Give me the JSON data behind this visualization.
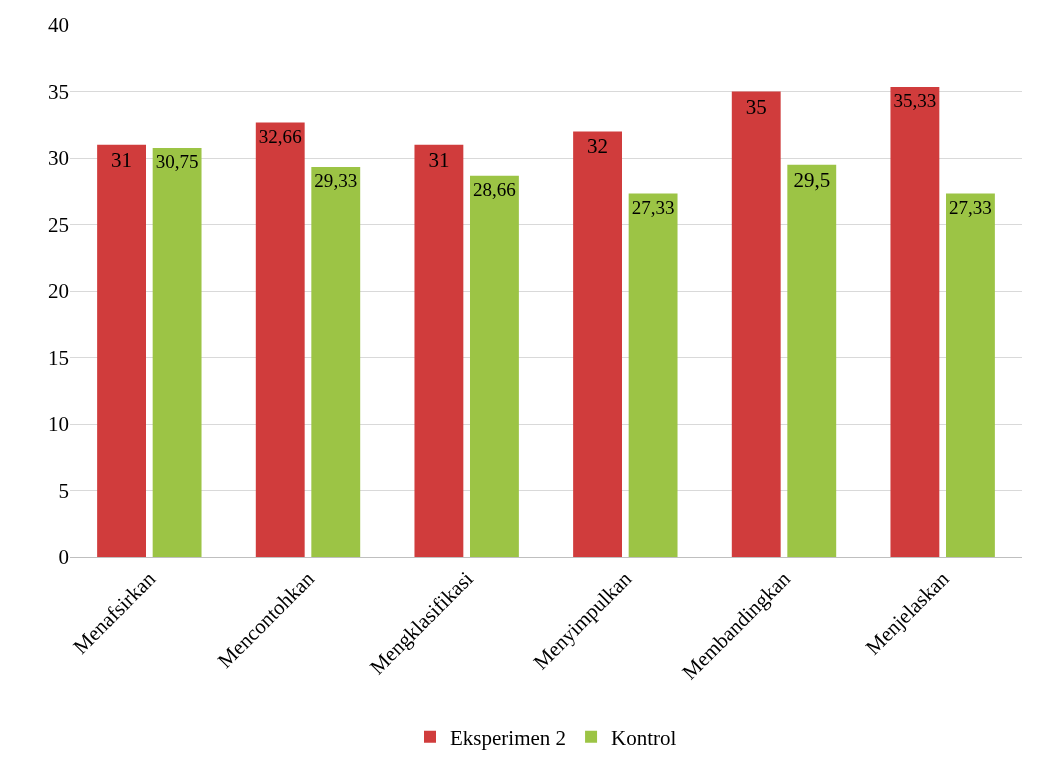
{
  "chart_data": {
    "type": "bar",
    "categories": [
      "Menafsirkan",
      "Mencontohkan",
      "Mengklasifikasi",
      "Menyimpulkan",
      "Membandingkan",
      "Menjelaskan"
    ],
    "series": [
      {
        "name": "Eksperimen 2",
        "color": "#d03c3c",
        "values": [
          31,
          32.66,
          31,
          32,
          35,
          35.33
        ],
        "value_labels": [
          "31",
          "32,66",
          "31",
          "32",
          "35",
          "35,33"
        ]
      },
      {
        "name": "Kontrol",
        "color": "#9cc445",
        "values": [
          30.75,
          29.33,
          28.66,
          27.33,
          29.5,
          27.33
        ],
        "value_labels": [
          "30,75",
          "29,33",
          "28,66",
          "27,33",
          "29,5",
          "27,33"
        ]
      }
    ],
    "ylim": [
      0,
      40
    ],
    "yticks": [
      0,
      5,
      10,
      15,
      20,
      25,
      30,
      35,
      40
    ],
    "grid": "y",
    "legend": "bottom"
  }
}
